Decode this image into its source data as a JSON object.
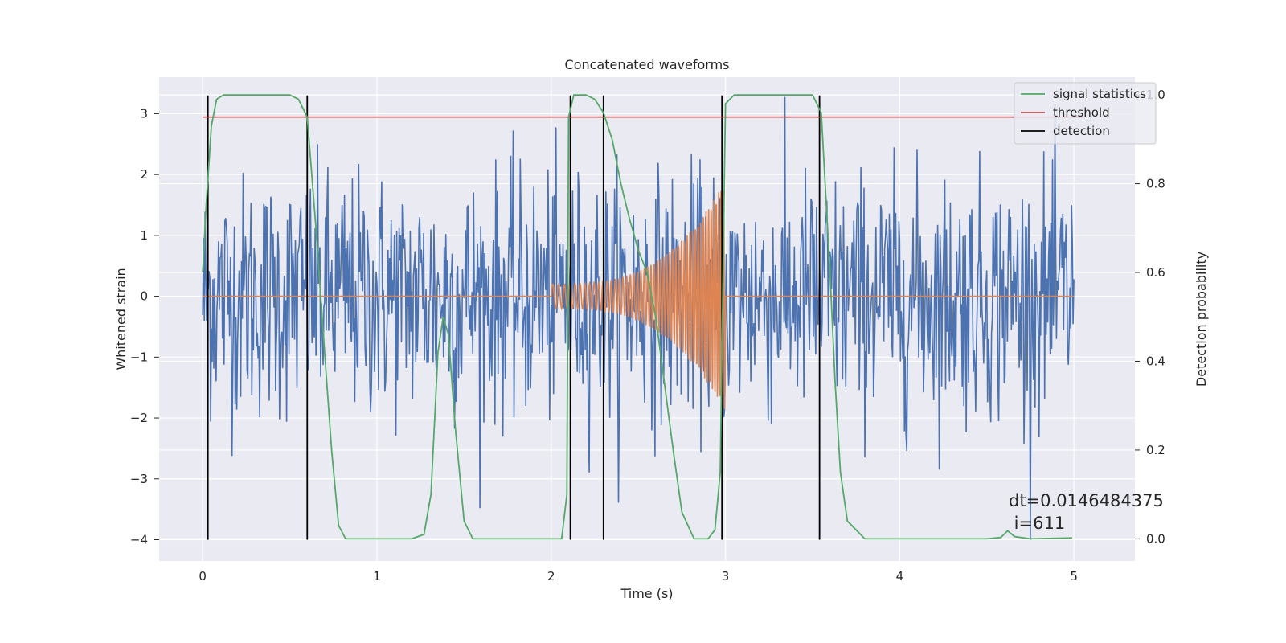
{
  "chart_data": {
    "type": "line",
    "title": "Concatenated waveforms",
    "xlabel": "Time (s)",
    "ylabel": "Whitened strain",
    "ylabel_right": "Detection probability",
    "xlim": [
      -0.25,
      5.35
    ],
    "ylim": [
      -4.35,
      3.6
    ],
    "ylim_right": [
      -0.05,
      1.04
    ],
    "x_ticks": [
      0,
      1,
      2,
      3,
      4,
      5
    ],
    "y_ticks": [
      -4,
      -3,
      -2,
      -1,
      0,
      1,
      2,
      3
    ],
    "y_ticks_right": [
      0.0,
      0.2,
      0.4,
      0.6,
      0.8,
      1.0
    ],
    "x_tick_labels": [
      "0",
      "1",
      "2",
      "3",
      "4",
      "5"
    ],
    "y_tick_labels": [
      "−4",
      "−3",
      "−2",
      "−1",
      "0",
      "1",
      "2",
      "3"
    ],
    "y_tick_labels_right": [
      "0.0",
      "0.2",
      "0.4",
      "0.6",
      "0.8",
      "1.0"
    ],
    "grid": true,
    "legend_position": "top-right",
    "series": [
      {
        "name": "signal statistics",
        "axis": "right",
        "color": "#55a868",
        "x": [
          0.0,
          0.02,
          0.05,
          0.08,
          0.12,
          0.2,
          0.5,
          0.55,
          0.6,
          0.65,
          0.7,
          0.74,
          0.78,
          0.82,
          1.2,
          1.27,
          1.31,
          1.35,
          1.38,
          1.41,
          1.45,
          1.5,
          1.55,
          2.0,
          2.06,
          2.09,
          2.1,
          2.13,
          2.2,
          2.25,
          2.3,
          2.35,
          2.4,
          2.45,
          2.5,
          2.55,
          2.6,
          2.65,
          2.7,
          2.75,
          2.82,
          2.9,
          2.94,
          2.97,
          3.0,
          3.05,
          3.5,
          3.55,
          3.6,
          3.63,
          3.66,
          3.7,
          3.8,
          4.5,
          4.58,
          4.62,
          4.66,
          4.75,
          4.99
        ],
        "y": [
          0.6,
          0.75,
          0.93,
          0.99,
          1.0,
          1.0,
          1.0,
          0.99,
          0.95,
          0.7,
          0.42,
          0.2,
          0.03,
          0.0,
          0.0,
          0.01,
          0.1,
          0.42,
          0.5,
          0.46,
          0.25,
          0.04,
          0.0,
          0.0,
          0.0,
          0.1,
          0.95,
          1.0,
          1.0,
          0.99,
          0.96,
          0.9,
          0.8,
          0.72,
          0.65,
          0.6,
          0.5,
          0.35,
          0.2,
          0.06,
          0.0,
          0.0,
          0.02,
          0.15,
          0.98,
          1.0,
          1.0,
          0.96,
          0.6,
          0.35,
          0.15,
          0.04,
          0.0,
          0.0,
          0.003,
          0.018,
          0.005,
          0.0,
          0.002
        ]
      },
      {
        "name": "threshold",
        "axis": "right",
        "color": "#c44e52",
        "x": [
          0.0,
          5.05
        ],
        "y": [
          0.95,
          0.95
        ]
      },
      {
        "name": "detection",
        "axis": "left",
        "color": "#000000",
        "vertical_lines_x": [
          0.03,
          0.6,
          2.11,
          2.3,
          2.98,
          3.54
        ],
        "y_range": [
          -4.0,
          3.3
        ]
      },
      {
        "axis": "left",
        "color": "#4c72b0",
        "x_range": [
          0.0,
          5.0
        ],
        "amplitude": 1.0,
        "min": -4.0,
        "max": 3.3
      },
      {
        "axis": "left",
        "color": "#dd8452",
        "x_range": [
          0.0,
          5.0
        ],
        "chirp_start": 2.0,
        "chirp_end": 3.0,
        "amplitude_start": 0.2,
        "amplitude_end": 1.9
      }
    ],
    "annotation": "dt=0.0146484375\n i=611"
  }
}
